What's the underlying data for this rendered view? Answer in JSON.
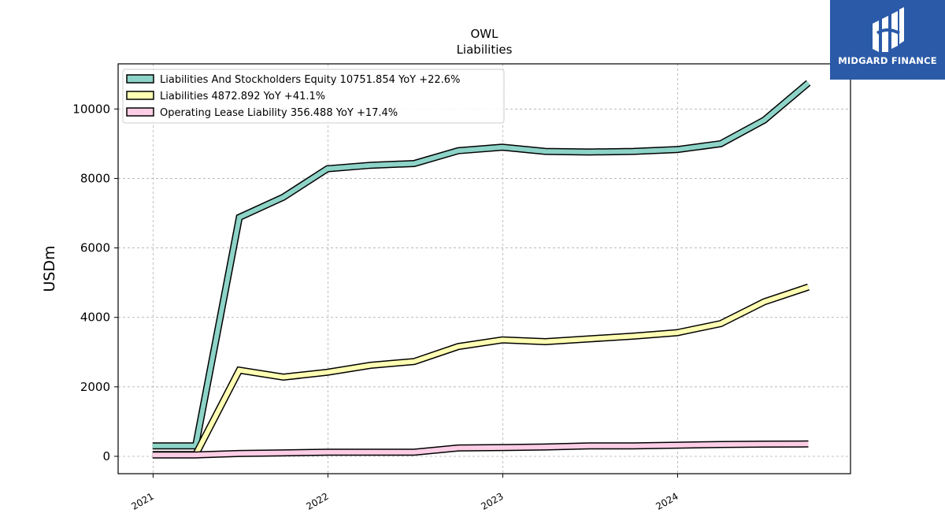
{
  "brand": {
    "name": "MIDGARD FINANCE",
    "color": "#2b5aa8"
  },
  "chart_data": {
    "type": "line",
    "title": "OWL",
    "subtitle": "Liabilities",
    "ylabel": "USDm",
    "xlabel": "",
    "ylim": [
      -500,
      11300
    ],
    "yticks": [
      0,
      2000,
      4000,
      6000,
      8000,
      10000
    ],
    "xlim": [
      "2020-10-20",
      "2024-12-27"
    ],
    "xticks": [
      {
        "label": "2021",
        "date": "2021-01-01"
      },
      {
        "label": "2022",
        "date": "2022-01-01"
      },
      {
        "label": "2023",
        "date": "2023-01-01"
      },
      {
        "label": "2024",
        "date": "2024-01-01"
      }
    ],
    "grid": true,
    "legend_position": "top-left",
    "x": [
      "2020-12-31",
      "2021-03-31",
      "2021-06-30",
      "2021-09-30",
      "2021-12-31",
      "2022-03-31",
      "2022-06-30",
      "2022-09-30",
      "2022-12-31",
      "2023-03-31",
      "2023-06-30",
      "2023-09-30",
      "2023-12-31",
      "2024-03-31",
      "2024-06-30",
      "2024-09-30"
    ],
    "series": [
      {
        "name": "Liabilities And Stockholders Equity",
        "legend": "Liabilities And Stockholders Equity  10751.854 YoY +22.6%",
        "color": "#8dd3c7",
        "values": [
          300,
          300,
          6880,
          7460,
          8280,
          8380,
          8430,
          8800,
          8900,
          8780,
          8760,
          8780,
          8830,
          9000,
          9680,
          10751.854
        ]
      },
      {
        "name": "Liabilities",
        "legend": "Liabilities  4872.892 YoY +41.1%",
        "color": "#ffffb3",
        "values": [
          50,
          50,
          2480,
          2280,
          2420,
          2620,
          2730,
          3160,
          3350,
          3300,
          3380,
          3460,
          3560,
          3820,
          4450,
          4872.892
        ]
      },
      {
        "name": "Operating Lease Liability",
        "legend": "Operating Lease Liability  356.488 YoY +17.4%",
        "color": "#fccde5",
        "values": [
          40,
          40,
          80,
          100,
          120,
          120,
          120,
          240,
          250,
          270,
          300,
          300,
          320,
          340,
          350,
          356.488
        ]
      }
    ]
  }
}
